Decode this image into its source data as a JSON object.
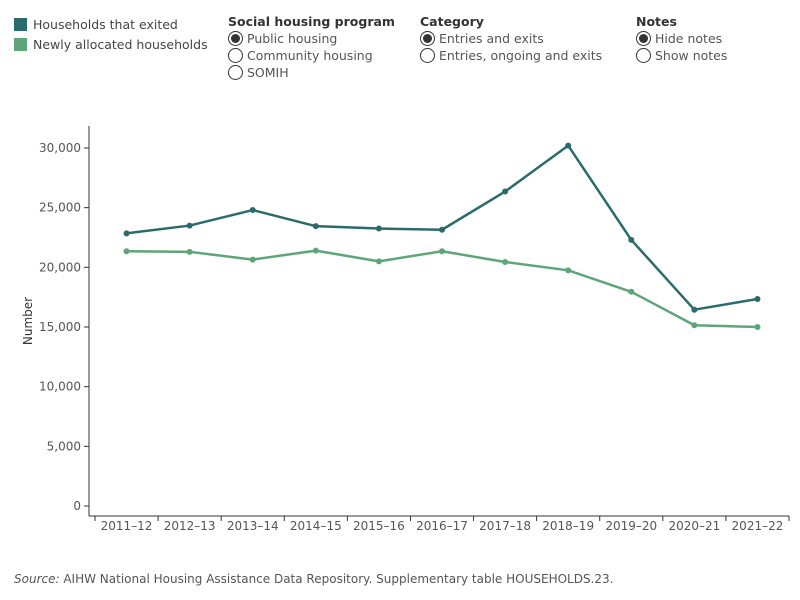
{
  "legend": {
    "items": [
      {
        "label": "Households that exited",
        "color": "#2a6b6c"
      },
      {
        "label": "Newly allocated households",
        "color": "#5ea679"
      }
    ]
  },
  "controls": {
    "program": {
      "title": "Social housing program",
      "options": [
        "Public housing",
        "Community housing",
        "SOMIH"
      ],
      "selected": 0
    },
    "category": {
      "title": "Category",
      "options": [
        "Entries and exits",
        "Entries, ongoing and exits"
      ],
      "selected": 0
    },
    "notes": {
      "title": "Notes",
      "options": [
        "Hide notes",
        "Show notes"
      ],
      "selected": 0
    }
  },
  "source": {
    "prefix": "Source:",
    "text": " AIHW National Housing Assistance Data Repository. Supplementary table HOUSEHOLDS.23."
  },
  "chart_data": {
    "type": "line",
    "ylabel": "Number",
    "xlabel": "",
    "ylim": [
      0,
      32000
    ],
    "yticks": [
      0,
      5000,
      10000,
      15000,
      20000,
      25000,
      30000
    ],
    "ytick_labels": [
      "0",
      "5,000",
      "10,000",
      "15,000",
      "20,000",
      "25,000",
      "30,000"
    ],
    "categories": [
      "2011–12",
      "2012–13",
      "2013–14",
      "2014–15",
      "2015–16",
      "2016–17",
      "2017–18",
      "2018–19",
      "2019–20",
      "2020–21",
      "2021–22"
    ],
    "series": [
      {
        "name": "Households that exited",
        "color": "#2a6b6c",
        "values": [
          22850,
          23500,
          24800,
          23450,
          23250,
          23150,
          26350,
          30200,
          22300,
          16450,
          17350
        ]
      },
      {
        "name": "Newly allocated households",
        "color": "#5ea679",
        "values": [
          21350,
          21300,
          20650,
          21400,
          20500,
          21350,
          20450,
          19750,
          17950,
          15150,
          15000
        ]
      }
    ],
    "grid": false,
    "legend_position": "top-left"
  }
}
